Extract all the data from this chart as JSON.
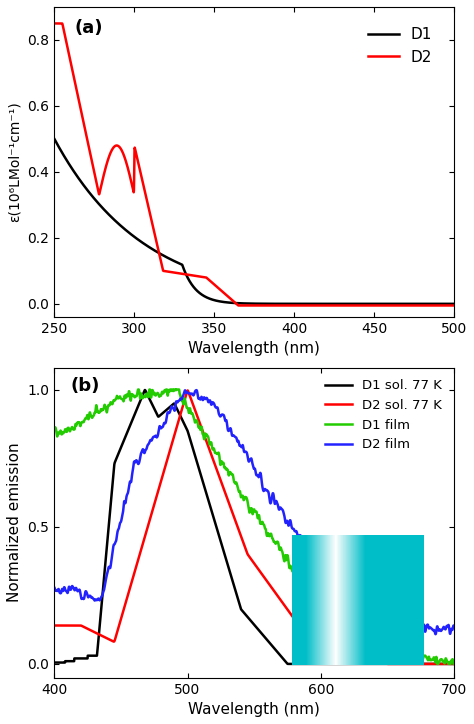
{
  "panel_a": {
    "title": "(a)",
    "xlabel": "Wavelength (nm)",
    "ylabel": "ε(10⁶LMol⁻¹cm⁻¹)",
    "xlim": [
      250,
      500
    ],
    "ylim": [
      -0.04,
      0.9
    ],
    "yticks": [
      0.0,
      0.2,
      0.4,
      0.6,
      0.8
    ],
    "xticks": [
      250,
      300,
      350,
      400,
      450,
      500
    ]
  },
  "panel_b": {
    "title": "(b)",
    "xlabel": "Wavelength (nm)",
    "ylabel": "Normalized emission",
    "xlim": [
      400,
      700
    ],
    "ylim": [
      -0.05,
      1.08
    ],
    "yticks": [
      0.0,
      0.5,
      1.0
    ],
    "xticks": [
      400,
      500,
      600,
      700
    ]
  },
  "figure_bg": "#ffffff",
  "linewidth": 1.8
}
